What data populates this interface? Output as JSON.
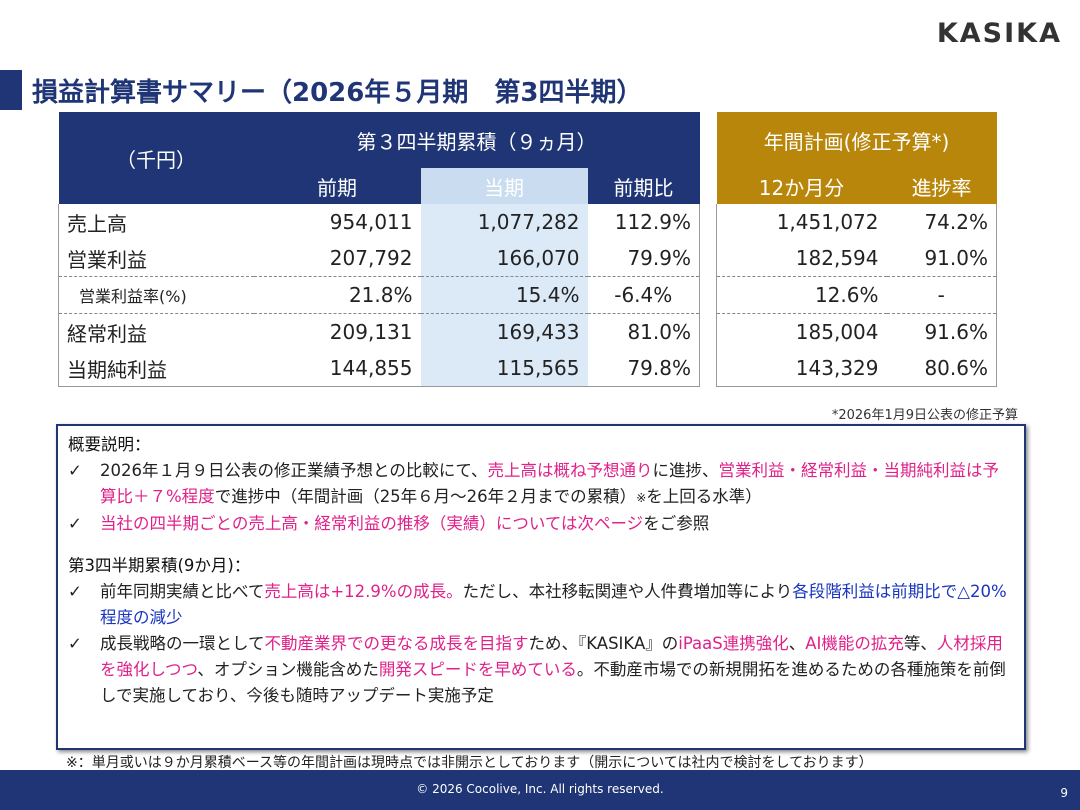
{
  "logo": "KASIKA",
  "title": "損益計算書サマリー（2026年５月期　第3四半期）",
  "table": {
    "unit_label": "（千円）",
    "group_cumulative": "第３四半期累積（９ヵ月）",
    "group_plan": "年間計画(修正予算*)",
    "col_prev": "前期",
    "col_curr": "当期",
    "col_ratio": "前期比",
    "col_12m": "12か月分",
    "col_progress": "進捗率",
    "rows": [
      {
        "label": "売上高",
        "prev": "954,011",
        "curr": "1,077,282",
        "ratio": "112.9%",
        "plan": "1,451,072",
        "progress": "74.2%"
      },
      {
        "label": "営業利益",
        "prev": "207,792",
        "curr": "166,070",
        "ratio": "79.9%",
        "plan": "182,594",
        "progress": "91.0%"
      },
      {
        "label": "営業利益率(%)",
        "prev": "21.8%",
        "curr": "15.4%",
        "ratio": "-6.4%",
        "plan": "12.6%",
        "progress": "-"
      },
      {
        "label": "経常利益",
        "prev": "209,131",
        "curr": "169,433",
        "ratio": "81.0%",
        "plan": "185,004",
        "progress": "91.6%"
      },
      {
        "label": "当期純利益",
        "prev": "144,855",
        "curr": "115,565",
        "ratio": "79.8%",
        "plan": "143,329",
        "progress": "80.6%"
      }
    ],
    "revision_note": "*2026年1月9日公表の修正予算"
  },
  "summary": {
    "heading": "概要説明：",
    "check": "✓",
    "b1_a": "2026年１月９日公表の修正業績予想との比較にて、",
    "b1_b": "売上高は概ね予想通り",
    "b1_c": "に進捗、",
    "b1_d": "営業利益・経常利益・当期純利益は予算比＋７%程度",
    "b1_e": "で進捗中（年間計画（25年６月～26年２月までの累積）",
    "b1_f": "※",
    "b1_g": "を上回る水準）",
    "b2_a": "当社の四半期ごとの売上高・経常利益の推移（実績）については次ページ",
    "b2_b": "をご参照",
    "heading2": "第3四半期累積(9か月)：",
    "b3_a": "前年同期実績と比べて",
    "b3_b": "売上高は+12.9%の成長。",
    "b3_c": "ただし、本社移転関連や人件費増加等により",
    "b3_d": "各段階利益は前期比で△20%程度の減少",
    "b4_a": "成長戦略の一環として",
    "b4_b": "不動産業界での更なる成長を目指す",
    "b4_c": "ため、『KASIKA』の",
    "b4_d": "iPaaS連携強化",
    "b4_e": "、",
    "b4_f": "AI機能の拡充",
    "b4_g": "等、",
    "b4_h": "人材採用を強化しつつ",
    "b4_i": "、オプション機能含めた",
    "b4_j": "開発スピードを早めている",
    "b4_k": "。不動産市場での新規開拓を進めるための各種施策を前倒しで実施しており、今後も随時アップデート実施予定"
  },
  "footnote": "※：単月或いは９か月累積ベース等の年間計画は現時点では非開示としております（開示については社内で検討をしております）",
  "footer": {
    "copyright": "© 2026 Cocolive, Inc. All rights reserved.",
    "page": "9"
  },
  "colors": {
    "navy": "#1f3575",
    "gold": "#b8860b",
    "current_col": "#dce9f6",
    "pink": "#e0218a",
    "blue": "#1a35c0"
  }
}
